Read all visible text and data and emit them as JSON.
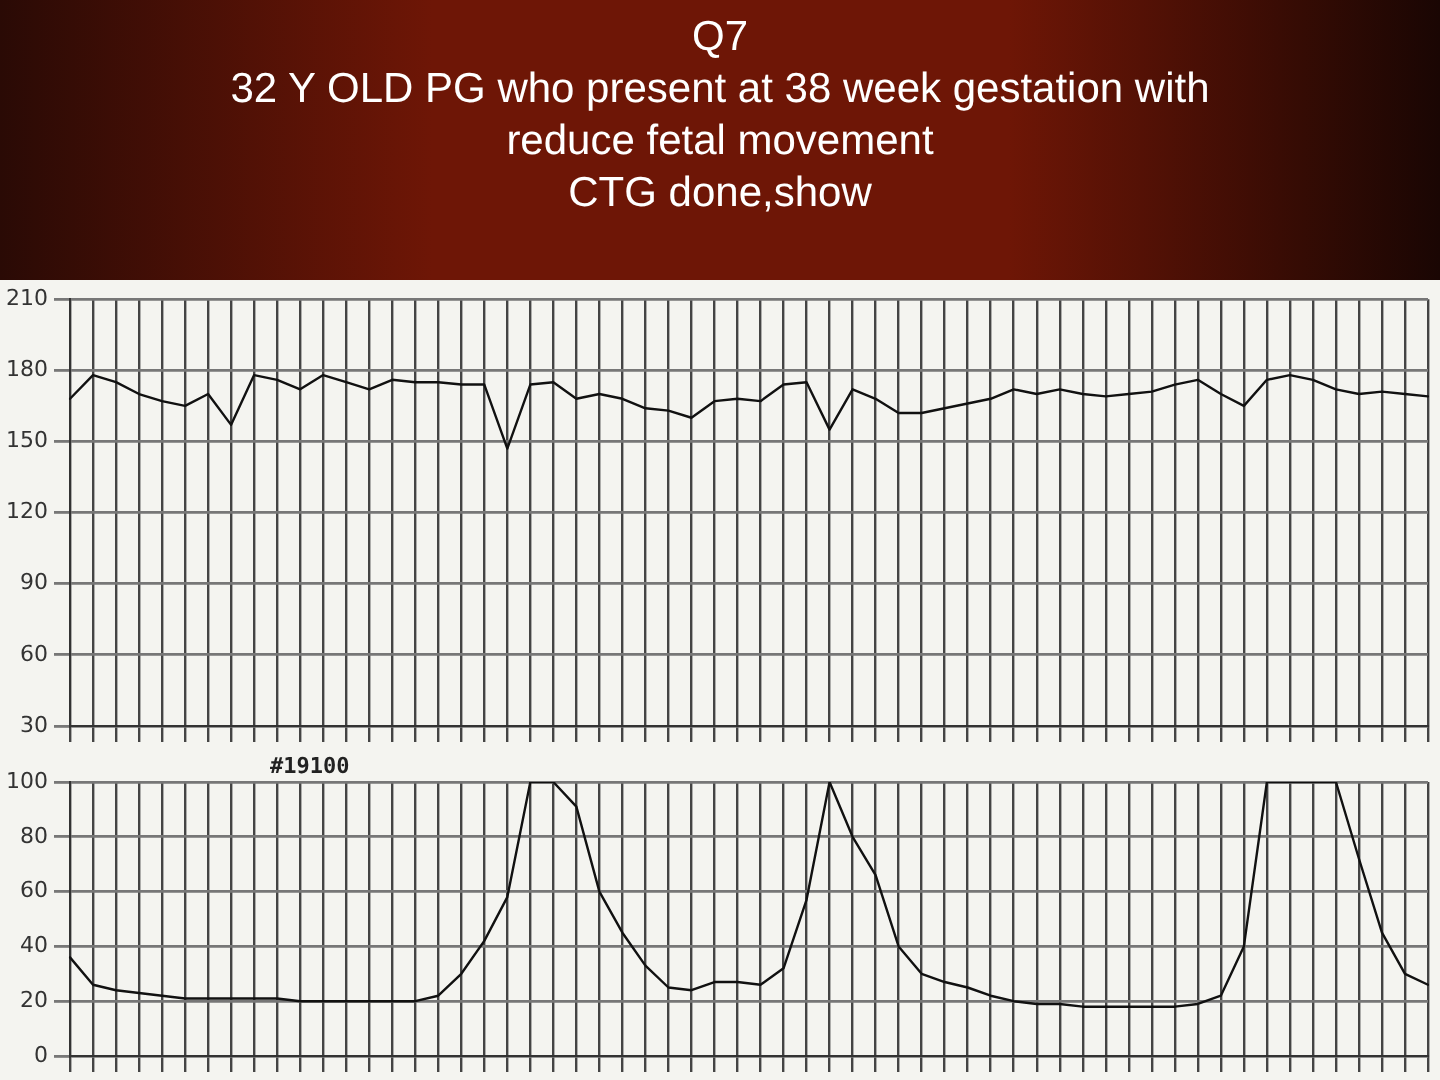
{
  "chart_data": [
    {
      "type": "line",
      "title": "Q7\n32 Y OLD PG who present at 38 week gestation with\nreduce fetal movement\nCTG done,show",
      "categories": [
        null,
        null,
        null,
        null,
        null,
        null,
        null,
        null,
        null,
        null,
        null,
        null,
        null,
        null,
        null,
        null,
        null,
        null,
        null,
        null,
        null,
        null,
        null,
        null,
        null,
        null,
        null,
        null,
        null,
        null,
        null,
        null,
        null,
        null,
        null,
        null,
        null,
        null,
        null,
        null,
        null,
        null,
        null,
        null,
        null,
        null,
        null,
        null,
        null,
        null,
        null,
        null,
        null,
        null,
        null,
        null,
        null,
        null,
        null,
        null
      ],
      "series": [
        {
          "color": "#111111",
          "values": [
            168,
            178,
            175,
            170,
            167,
            165,
            170,
            157,
            178,
            176,
            172,
            178,
            175,
            172,
            176,
            175,
            175,
            174,
            174,
            147,
            174,
            175,
            168,
            170,
            168,
            164,
            163,
            160,
            167,
            168,
            167,
            174,
            175,
            155,
            172,
            168,
            162,
            162,
            164,
            166,
            168,
            172,
            170,
            172,
            170,
            169,
            170,
            171,
            174,
            176,
            170,
            165,
            176,
            178,
            176,
            172,
            170,
            171,
            170,
            169
          ]
        }
      ],
      "ylim": [
        30,
        210
      ],
      "yticks": [
        30,
        60,
        90,
        120,
        150,
        180,
        210
      ],
      "grid": true,
      "tick_labels": "y",
      "marker": "none",
      "line_style": "solid"
    },
    {
      "type": "line",
      "categories": [
        null,
        null,
        null,
        null,
        null,
        null,
        null,
        null,
        null,
        null,
        null,
        null,
        null,
        null,
        null,
        null,
        null,
        null,
        null,
        null,
        null,
        null,
        null,
        null,
        null,
        null,
        null,
        null,
        null,
        null,
        null,
        null,
        null,
        null,
        null,
        null,
        null,
        null,
        null,
        null,
        null,
        null,
        null,
        null,
        null,
        null,
        null,
        null,
        null,
        null,
        null,
        null,
        null,
        null,
        null,
        null,
        null,
        null,
        null,
        null
      ],
      "series": [
        {
          "color": "#111111",
          "values": [
            36,
            26,
            24,
            23,
            22,
            21,
            21,
            21,
            21,
            21,
            20,
            20,
            20,
            20,
            20,
            20,
            22,
            30,
            42,
            58,
            100,
            100,
            91,
            60,
            45,
            33,
            25,
            24,
            27,
            27,
            26,
            32,
            57,
            100,
            80,
            66,
            40,
            30,
            27,
            25,
            22,
            20,
            19,
            19,
            18,
            18,
            18,
            18,
            18,
            19,
            22,
            40,
            100,
            100,
            100,
            100,
            72,
            45,
            30,
            26
          ]
        }
      ],
      "ylim": [
        0,
        100
      ],
      "yticks": [
        0,
        20,
        40,
        60,
        80,
        100
      ],
      "grid": true,
      "tick_labels": "y",
      "marker": "none",
      "line_style": "solid",
      "annotations": [
        "#19100"
      ]
    }
  ]
}
